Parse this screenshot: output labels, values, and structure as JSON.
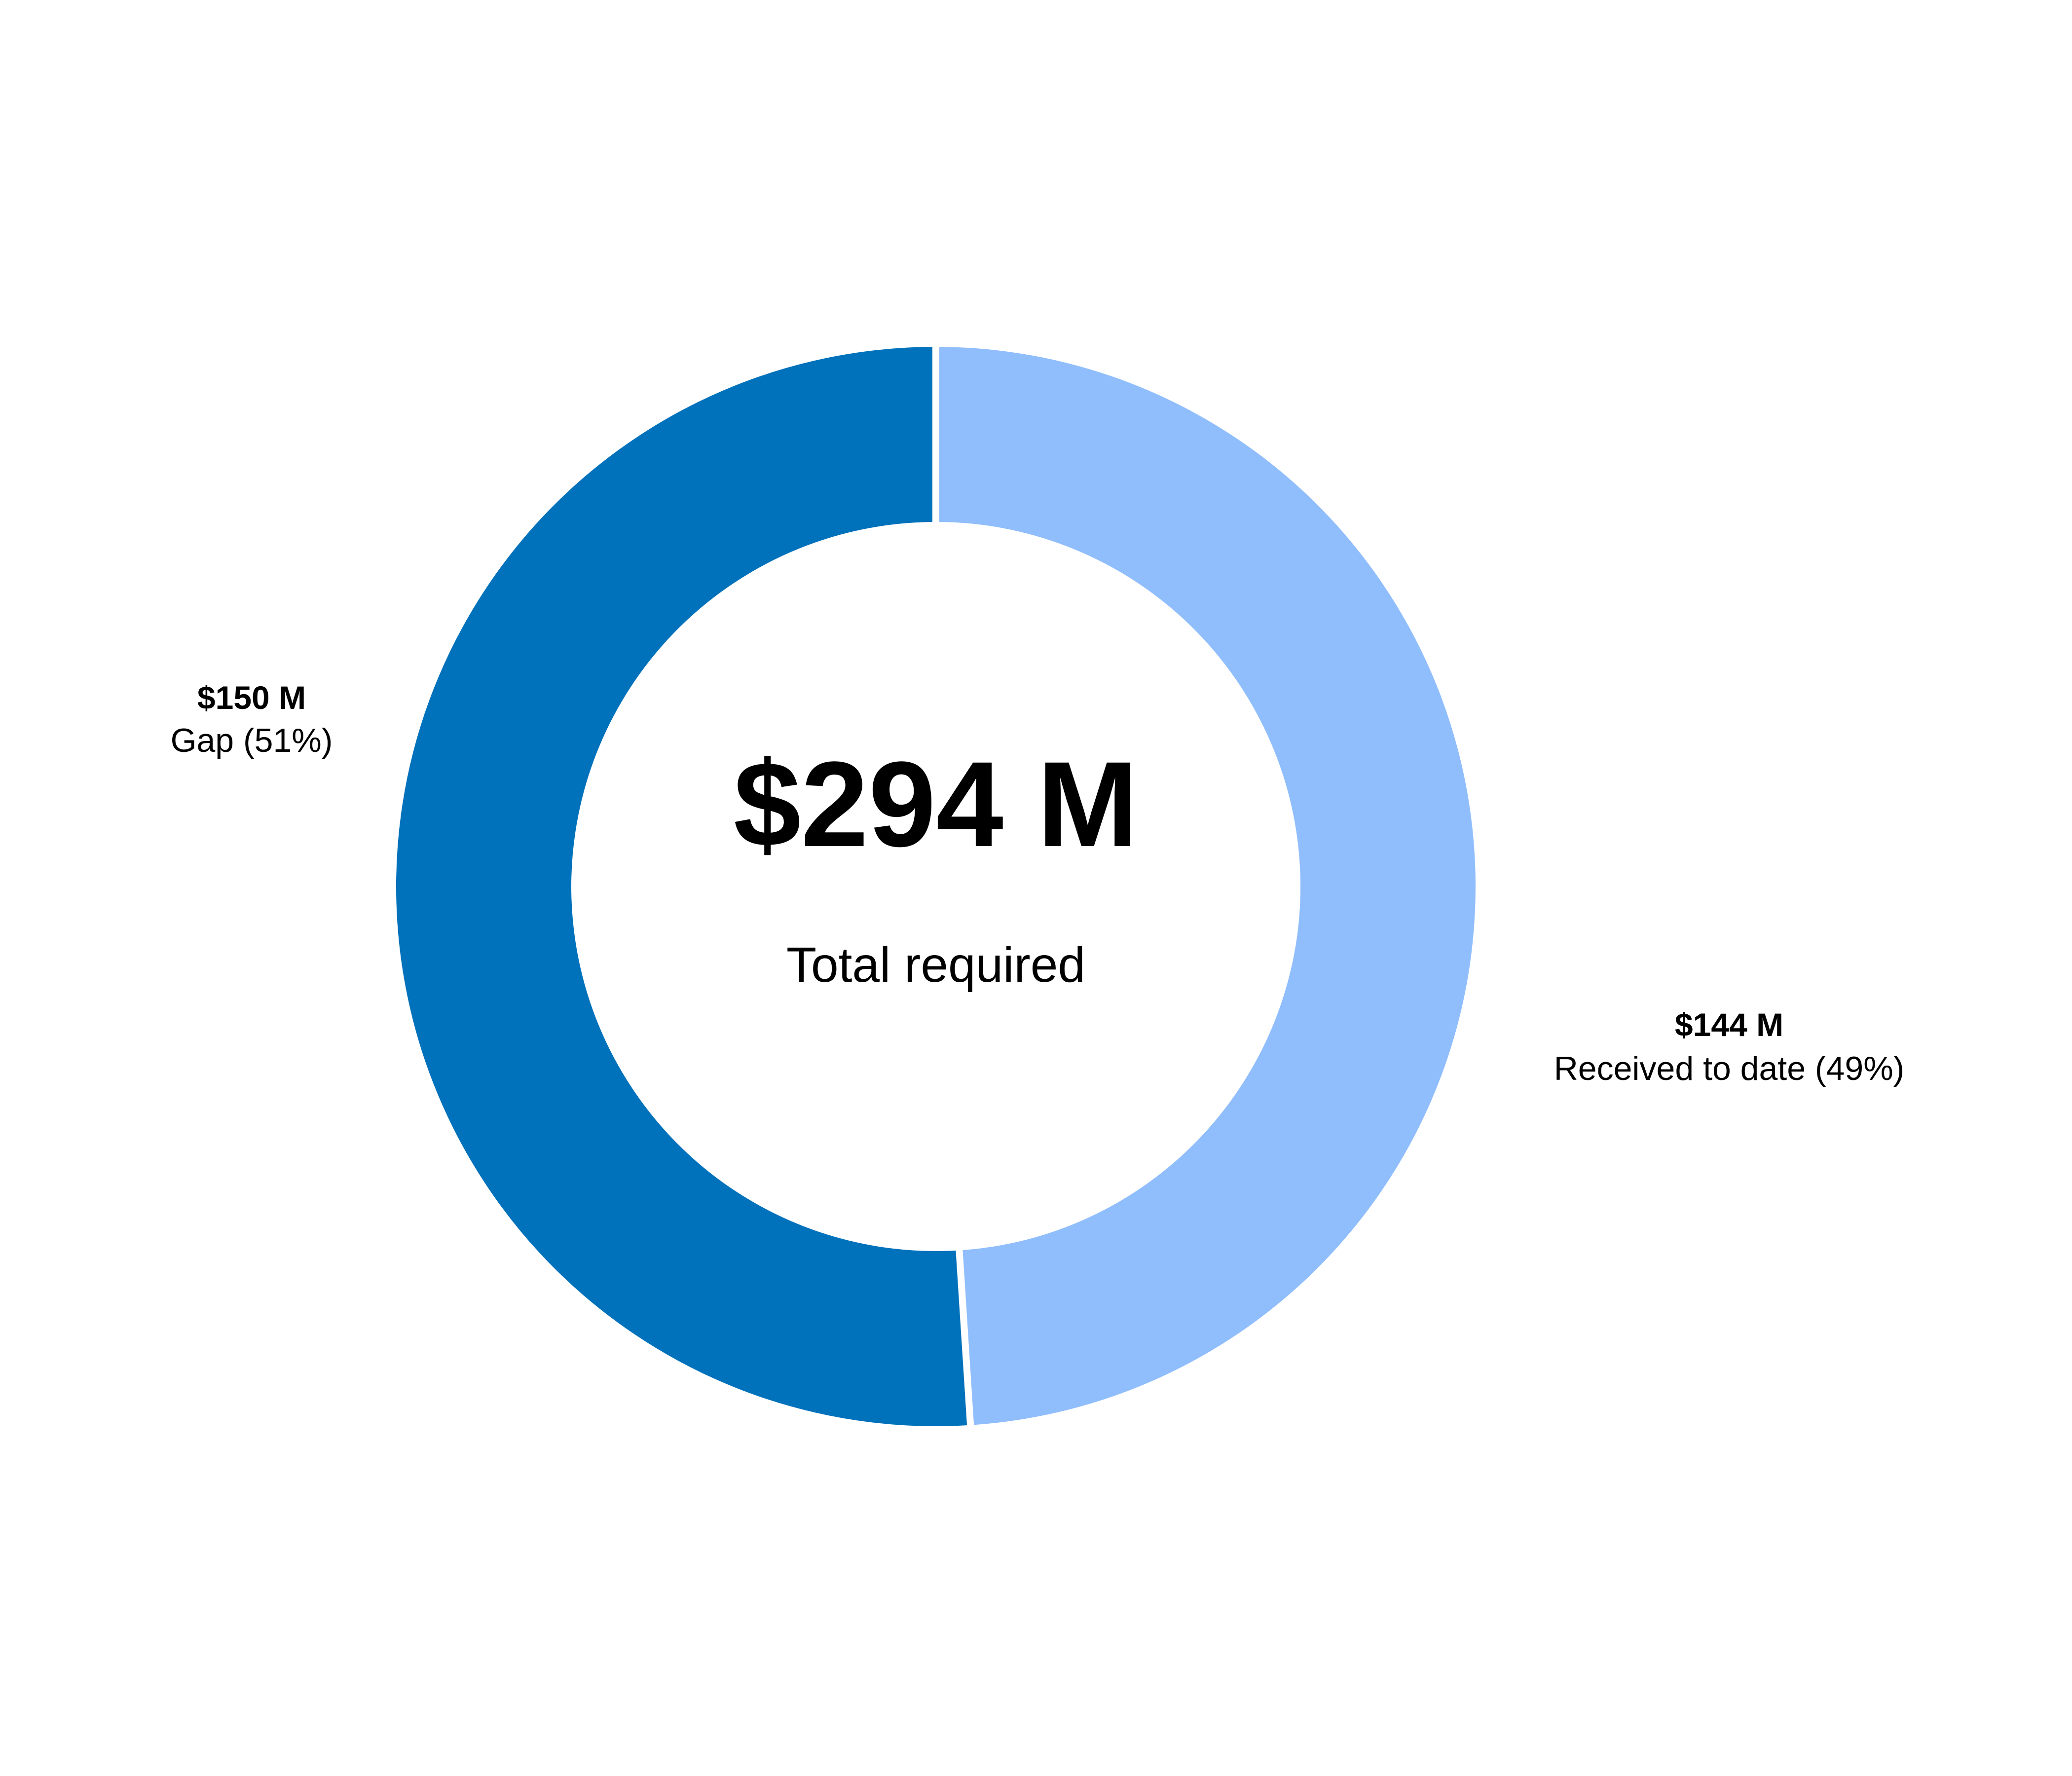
{
  "chart_data": {
    "type": "pie",
    "variant": "donut",
    "center": {
      "value": "$294 M",
      "label": "Total required"
    },
    "total": 294,
    "unit": "$ M",
    "slices": [
      {
        "key": "received",
        "value": 144,
        "percent": 49,
        "amount_label": "$144 M",
        "desc_label": "Received to date (49%)",
        "color": "#90BEFC"
      },
      {
        "key": "gap",
        "value": 150,
        "percent": 51,
        "amount_label": "$150 M",
        "desc_label": "Gap (51%)",
        "color": "#0071BB"
      }
    ]
  }
}
